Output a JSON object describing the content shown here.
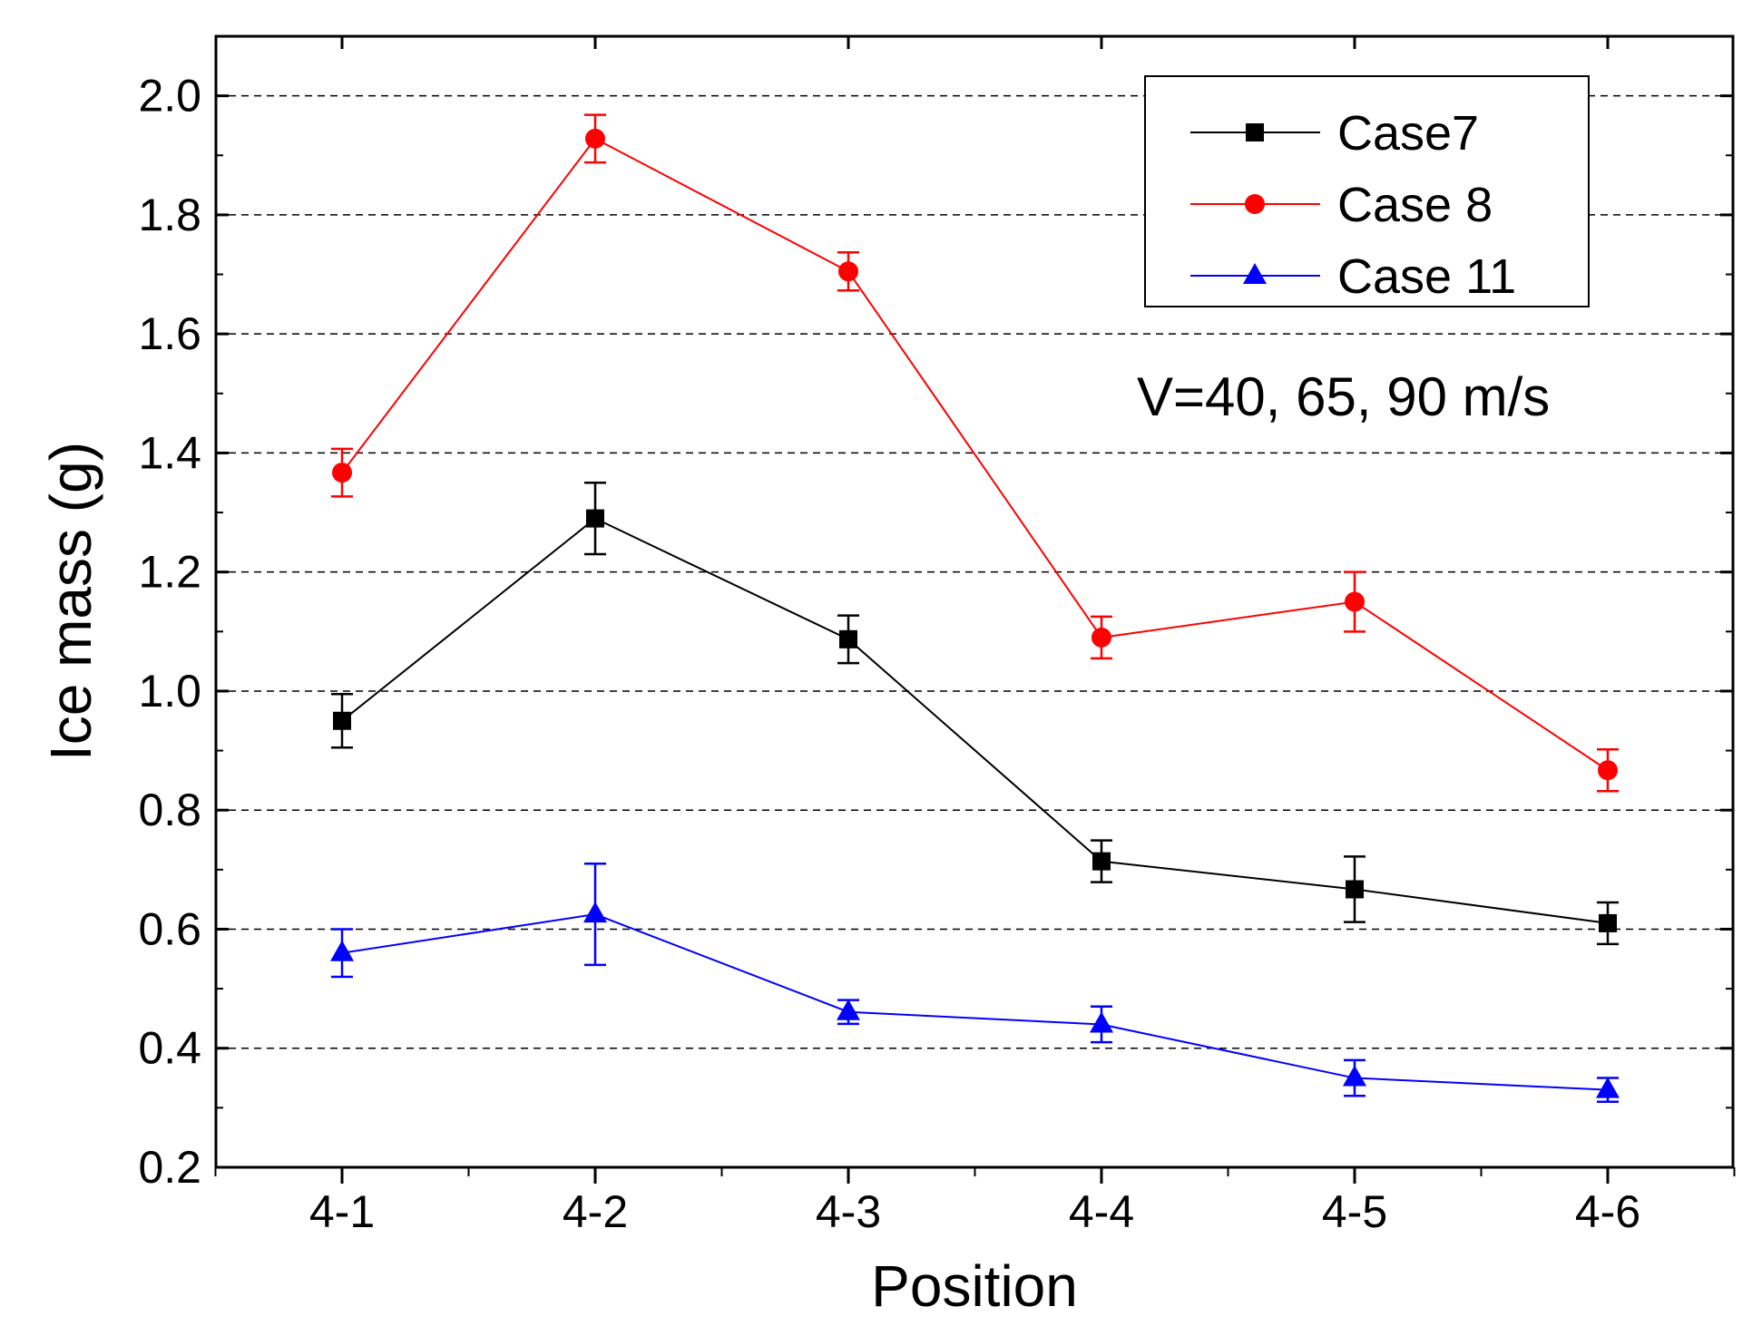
{
  "chart_data": {
    "type": "line",
    "xlabel": "Position",
    "ylabel": "Ice mass (g)",
    "categories": [
      "4-1",
      "4-2",
      "4-3",
      "4-4",
      "4-5",
      "4-6"
    ],
    "ylim": [
      0.2,
      2.1
    ],
    "yticks": [
      "0.2",
      "0.4",
      "0.6",
      "0.8",
      "1.0",
      "1.2",
      "1.4",
      "1.6",
      "1.8",
      "2.0"
    ],
    "grid": "horizontal-dashed",
    "legend_position": "top-right",
    "annotation": "V=40, 65, 90 m/s",
    "series": [
      {
        "name": "Case7",
        "color": "#000000",
        "marker": "square",
        "values": [
          0.95,
          1.29,
          1.087,
          0.714,
          0.667,
          0.61
        ],
        "errors": [
          0.045,
          0.06,
          0.04,
          0.035,
          0.055,
          0.035
        ]
      },
      {
        "name": "Case 8",
        "color": "#ff0000",
        "marker": "circle",
        "values": [
          1.367,
          1.928,
          1.705,
          1.09,
          1.15,
          0.867
        ],
        "errors": [
          0.04,
          0.04,
          0.032,
          0.035,
          0.05,
          0.035
        ]
      },
      {
        "name": "Case 11",
        "color": "#0000ff",
        "marker": "triangle",
        "values": [
          0.56,
          0.625,
          0.461,
          0.44,
          0.35,
          0.33
        ],
        "errors": [
          0.04,
          0.085,
          0.02,
          0.03,
          0.03,
          0.02
        ]
      }
    ]
  }
}
